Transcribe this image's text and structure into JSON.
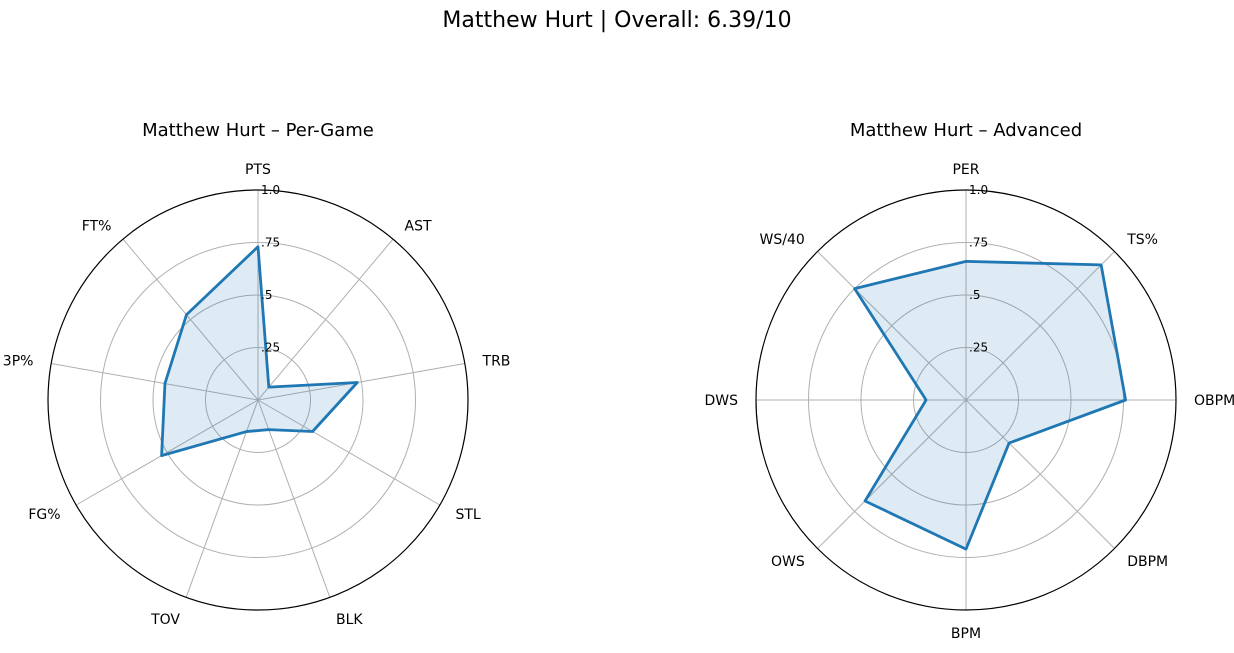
{
  "suptitle": "Matthew Hurt | Overall: 6.39/10",
  "colors": {
    "line": "#1f77b4",
    "fill": "#1f77b4",
    "grid": "#b0b0b0",
    "frame": "#000000"
  },
  "chart_data": [
    {
      "type": "radar",
      "title": "Matthew Hurt – Per-Game",
      "axes": [
        "PTS",
        "AST",
        "TRB",
        "STL",
        "BLK",
        "TOV",
        "FG%",
        "3P%",
        "FT%"
      ],
      "values": [
        0.73,
        0.08,
        0.48,
        0.3,
        0.15,
        0.16,
        0.53,
        0.45,
        0.53
      ],
      "rlim": [
        0,
        1
      ],
      "rticks": [
        0.25,
        0.5,
        0.75,
        1.0
      ],
      "rtick_labels": [
        ".25",
        ".5",
        ".75",
        "1.0"
      ],
      "grid": true
    },
    {
      "type": "radar",
      "title": "Matthew Hurt – Advanced",
      "axes": [
        "PER",
        "TS%",
        "OBPM",
        "DBPM",
        "BPM",
        "OWS",
        "DWS",
        "WS/40"
      ],
      "values": [
        0.66,
        0.91,
        0.76,
        0.29,
        0.71,
        0.68,
        0.19,
        0.75
      ],
      "rlim": [
        0,
        1
      ],
      "rticks": [
        0.25,
        0.5,
        0.75,
        1.0
      ],
      "rtick_labels": [
        ".25",
        ".5",
        ".75",
        "1.0"
      ],
      "grid": true
    }
  ]
}
